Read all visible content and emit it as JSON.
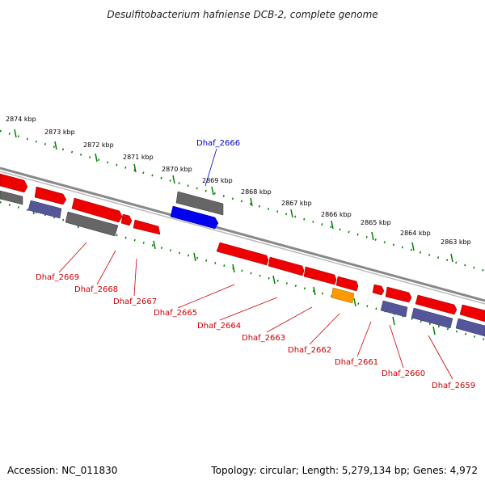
{
  "title": "Desulfitobacterium hafniense DCB-2, complete genome",
  "footer": {
    "accession": "Accession: NC_011830",
    "summary": "Topology: circular; Length: 5,279,134 bp; Genes: 4,972"
  },
  "colors": {
    "forward_gene": "#ee0000",
    "reverse_gene": "#55559a",
    "pseudo_gene": "#666666",
    "highlight_gene": "#0000ee",
    "rna_gene": "#ff9900",
    "tick": "#008000",
    "backbone": "#888888",
    "label_red": "#cc0000",
    "label_blue": "#0000cc"
  },
  "kbp_ticks": [
    "2874 kbp",
    "2873 kbp",
    "2872 kbp",
    "2871 kbp",
    "2870 kbp",
    "2869 kbp",
    "2868 kbp",
    "2867 kbp",
    "2866 kbp",
    "2865 kbp",
    "2864 kbp",
    "2863 kbp"
  ],
  "genes": {
    "g2666": "Dhaf_2666",
    "g2669": "Dhaf_2669",
    "g2668": "Dhaf_2668",
    "g2667": "Dhaf_2667",
    "g2665": "Dhaf_2665",
    "g2664": "Dhaf_2664",
    "g2663": "Dhaf_2663",
    "g2662": "Dhaf_2662",
    "g2661": "Dhaf_2661",
    "g2660": "Dhaf_2660",
    "g2659": "Dhaf_2659"
  }
}
